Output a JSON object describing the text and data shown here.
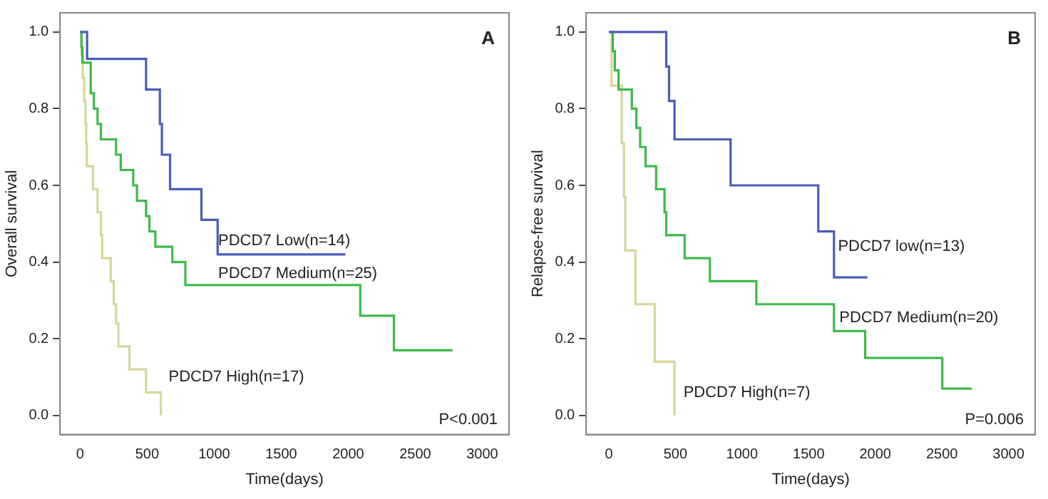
{
  "chart_data": [
    {
      "type": "step",
      "xlabel": "Time(days)",
      "ylabel": "Overall survival",
      "xlim": [
        -150,
        3200
      ],
      "ylim": [
        -0.05,
        1.05
      ],
      "xticks": [
        0,
        500,
        1000,
        1500,
        2000,
        2500,
        3000
      ],
      "yticks": [
        {
          "value": 0,
          "label": "0.0"
        },
        {
          "value": 0.2,
          "label": "0.2"
        },
        {
          "value": 0.4,
          "label": "0.4"
        },
        {
          "value": 0.6,
          "label": "0.6"
        },
        {
          "value": 0.8,
          "label": "0.8"
        },
        {
          "value": 1,
          "label": "1.0"
        }
      ],
      "grid": false,
      "legend": false,
      "annotations": [
        "A",
        "P<0.001"
      ],
      "series": [
        {
          "name": "PDCD7 Low(n=14)",
          "color": "#4a5db8",
          "x": [
            0,
            52,
            492,
            595,
            610,
            671,
            905,
            1026,
            1979
          ],
          "values": [
            1,
            0.93,
            0.85,
            0.76,
            0.68,
            0.59,
            0.51,
            0.42,
            0.42
          ]
        },
        {
          "name": "PDCD7 Medium(n=25)",
          "color": "#3dba4a",
          "x": [
            0,
            10,
            17,
            79,
            103,
            130,
            155,
            268,
            303,
            396,
            424,
            492,
            517,
            561,
            688,
            785,
            2090,
            2341,
            2779
          ],
          "values": [
            1,
            0.96,
            0.92,
            0.84,
            0.8,
            0.76,
            0.72,
            0.68,
            0.64,
            0.6,
            0.56,
            0.52,
            0.48,
            0.44,
            0.4,
            0.34,
            0.26,
            0.17,
            0.17
          ]
        },
        {
          "name": "PDCD7 High(n=17)",
          "color": "#d6d69a",
          "x": [
            0,
            10,
            20,
            30,
            40,
            45,
            50,
            96,
            130,
            155,
            165,
            228,
            251,
            268,
            285,
            368,
            492,
            602
          ],
          "values": [
            1,
            0.94,
            0.88,
            0.82,
            0.76,
            0.71,
            0.65,
            0.59,
            0.53,
            0.47,
            0.41,
            0.35,
            0.29,
            0.24,
            0.18,
            0.12,
            0.06,
            0
          ]
        }
      ]
    },
    {
      "type": "step",
      "xlabel": "Time(days)",
      "ylabel": "Relapse-free survival",
      "xlim": [
        -170,
        3200
      ],
      "ylim": [
        -0.05,
        1.05
      ],
      "xticks": [
        0,
        500,
        1000,
        1500,
        2000,
        2500,
        3000
      ],
      "yticks": [
        {
          "value": 0,
          "label": "0.0"
        },
        {
          "value": 0.2,
          "label": "0.2"
        },
        {
          "value": 0.4,
          "label": "0.4"
        },
        {
          "value": 0.6,
          "label": "0.6"
        },
        {
          "value": 0.8,
          "label": "0.8"
        },
        {
          "value": 1,
          "label": "1.0"
        }
      ],
      "grid": false,
      "legend": false,
      "annotations": [
        "B",
        "P=0.006"
      ],
      "series": [
        {
          "name": "PDCD7 low(n=13)",
          "color": "#4a5db8",
          "x": [
            0,
            431,
            452,
            493,
            914,
            1572,
            1690,
            1941
          ],
          "values": [
            1,
            0.91,
            0.82,
            0.72,
            0.6,
            0.48,
            0.36,
            0.36
          ]
        },
        {
          "name": "PDCD7 Medium(n=20)",
          "color": "#3dba4a",
          "x": [
            0,
            30,
            45,
            73,
            173,
            207,
            235,
            276,
            355,
            418,
            431,
            569,
            759,
            1107,
            1690,
            1924,
            2503,
            2724
          ],
          "values": [
            1,
            0.95,
            0.9,
            0.85,
            0.8,
            0.75,
            0.7,
            0.65,
            0.59,
            0.53,
            0.47,
            0.41,
            0.35,
            0.29,
            0.22,
            0.15,
            0.07,
            0.07
          ]
        },
        {
          "name": "PDCD7 High(n=7)",
          "color": "#d6d69a",
          "x": [
            0,
            21,
            97,
            114,
            124,
            200,
            345,
            493
          ],
          "values": [
            1,
            0.86,
            0.71,
            0.57,
            0.43,
            0.29,
            0.14,
            0
          ]
        }
      ]
    }
  ]
}
